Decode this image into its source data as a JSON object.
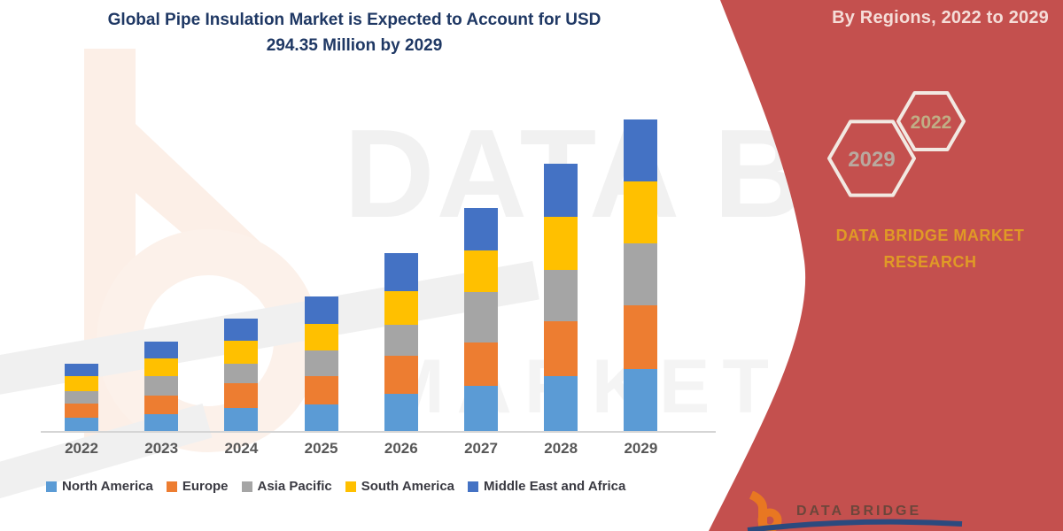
{
  "title": {
    "line1": "Global Pipe Insulation Market is Expected to Account for USD",
    "line2": "294.35 Million by 2029"
  },
  "watermark": {
    "line1": "DATA BRIDGE",
    "line2": "MARKET RESEARCH"
  },
  "side_panel": {
    "heading": "By Regions, 2022 to 2029",
    "hexagon_back_label": "2029",
    "hexagon_front_label": "2022",
    "brand_line1": "DATA BRIDGE MARKET",
    "brand_line2": "RESEARCH",
    "footer_logo_text": "DATA BRIDGE",
    "bg_color": "#C4504E",
    "brand_text_color": "#E09A26"
  },
  "chart_data": {
    "type": "bar",
    "stacked": true,
    "title": "Global Pipe Insulation Market is Expected to Account for USD 294.35 Million by 2029",
    "unit": "USD Million",
    "xlabel": "",
    "ylabel": "",
    "ylim": [
      0,
      300
    ],
    "gridlines": false,
    "y_axis_visible": false,
    "legend_position": "bottom",
    "categories": [
      "2022",
      "2023",
      "2024",
      "2025",
      "2026",
      "2027",
      "2028",
      "2029"
    ],
    "series": [
      {
        "name": "North America",
        "color": "#5B9BD5",
        "values": [
          12.5,
          16,
          21.5,
          25.5,
          35,
          43,
          52,
          58.5
        ]
      },
      {
        "name": "Europe",
        "color": "#ED7D31",
        "values": [
          13.5,
          17.5,
          23.5,
          26,
          36,
          40.5,
          52,
          60.35
        ]
      },
      {
        "name": "Asia Pacific",
        "color": "#A5A5A5",
        "values": [
          11.5,
          18.5,
          18.5,
          25,
          29.5,
          47.5,
          48.5,
          58.5
        ]
      },
      {
        "name": "South America",
        "color": "#FFC000",
        "values": [
          14,
          16.5,
          21.5,
          24.5,
          32,
          39.5,
          50,
          58.5
        ]
      },
      {
        "name": "Middle East and Africa",
        "color": "#4472C4",
        "values": [
          12,
          16,
          21,
          26.5,
          36,
          40,
          50,
          58.5
        ]
      }
    ],
    "totals": [
      63.5,
      84.5,
      106,
      127.5,
      168.5,
      210.5,
      252.5,
      294.35
    ]
  }
}
